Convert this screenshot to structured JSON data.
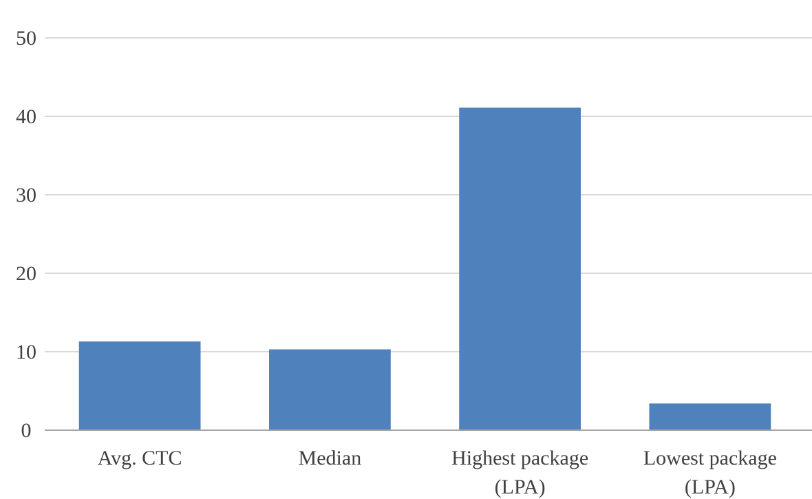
{
  "chart_data": {
    "type": "bar",
    "categories": [
      [
        "Avg. CTC"
      ],
      [
        "Median"
      ],
      [
        "Highest package",
        "(LPA)"
      ],
      [
        "Lowest package",
        "(LPA)"
      ]
    ],
    "values": [
      11.3,
      10.3,
      41.1,
      3.4
    ],
    "ylim": [
      0,
      50
    ],
    "yticks": [
      "0",
      "10",
      "20",
      "30",
      "40",
      "50"
    ],
    "grid": true,
    "bar_color": "#4f81bd",
    "title": "",
    "xlabel": "",
    "ylabel": ""
  }
}
